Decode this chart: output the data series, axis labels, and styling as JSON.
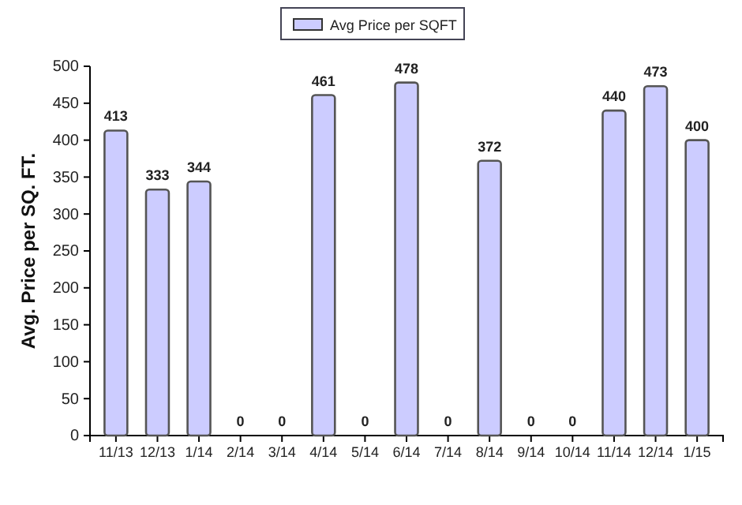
{
  "chart_data": {
    "type": "bar",
    "ylabel": "Avg. Price per SQ. FT.",
    "categories": [
      "11/13",
      "12/13",
      "1/14",
      "2/14",
      "3/14",
      "4/14",
      "5/14",
      "6/14",
      "7/14",
      "8/14",
      "9/14",
      "10/14",
      "11/14",
      "12/14",
      "1/15"
    ],
    "series": [
      {
        "name": "Avg Price per SQFT",
        "color": "#ccccff",
        "values": [
          413,
          333,
          344,
          0,
          0,
          461,
          0,
          478,
          0,
          372,
          0,
          0,
          440,
          473,
          400
        ]
      }
    ],
    "ylim": [
      0,
      500
    ],
    "yticks": [
      0,
      50,
      100,
      150,
      200,
      250,
      300,
      350,
      400,
      450,
      500
    ],
    "data_labels": true,
    "legend": "top",
    "grid": false
  }
}
